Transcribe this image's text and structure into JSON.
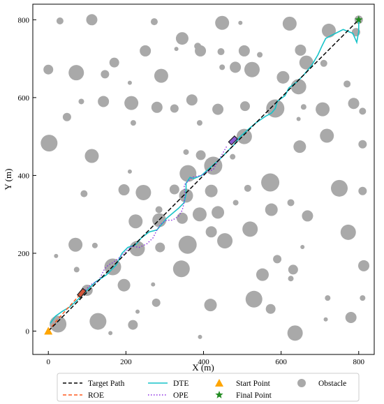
{
  "chart_data": {
    "type": "scatter",
    "xlabel": "X (m)",
    "ylabel": "Y (m)",
    "xlim": [
      -40,
      840
    ],
    "ylim": [
      -60,
      840
    ],
    "xticks": [
      0,
      200,
      400,
      600,
      800
    ],
    "yticks": [
      0,
      200,
      400,
      600,
      800
    ],
    "legend": {
      "placement": "bottom",
      "entries": [
        {
          "key": "target",
          "label": "Target Path"
        },
        {
          "key": "roe",
          "label": "ROE"
        },
        {
          "key": "dte",
          "label": "DTE"
        },
        {
          "key": "ope",
          "label": "OPE"
        },
        {
          "key": "start",
          "label": "Start Point"
        },
        {
          "key": "final",
          "label": "Final Point"
        },
        {
          "key": "obstacle",
          "label": "Obstacle"
        }
      ]
    },
    "colors": {
      "target": "#000000",
      "roe": "#ff5a1f",
      "dte": "#17c3c9",
      "ope": "#8a2be2",
      "start": "#ffa500",
      "final": "#228b22",
      "obstacle": "#a9a9a9",
      "vehicle_roe": "#d2553a",
      "vehicle_ope": "#8a5ad2"
    },
    "start_point": [
      0,
      0
    ],
    "final_point": [
      800,
      800
    ],
    "target_path": [
      [
        0,
        0
      ],
      [
        800,
        800
      ]
    ],
    "roe_path": [
      [
        0,
        0
      ],
      [
        20,
        25
      ],
      [
        40,
        48
      ],
      [
        60,
        70
      ],
      [
        80,
        92
      ],
      [
        86,
        98
      ]
    ],
    "dte_path": [
      [
        5,
        20
      ],
      [
        18,
        38
      ],
      [
        35,
        50
      ],
      [
        55,
        62
      ],
      [
        75,
        80
      ],
      [
        95,
        100
      ],
      [
        120,
        125
      ],
      [
        150,
        145
      ],
      [
        175,
        170
      ],
      [
        190,
        200
      ],
      [
        205,
        215
      ],
      [
        225,
        222
      ],
      [
        240,
        240
      ],
      [
        260,
        255
      ],
      [
        280,
        260
      ],
      [
        305,
        290
      ],
      [
        335,
        315
      ],
      [
        350,
        330
      ],
      [
        355,
        352
      ],
      [
        355,
        380
      ],
      [
        365,
        395
      ],
      [
        375,
        392
      ],
      [
        395,
        400
      ],
      [
        415,
        418
      ],
      [
        440,
        440
      ],
      [
        465,
        465
      ],
      [
        478,
        478
      ],
      [
        495,
        500
      ],
      [
        515,
        518
      ],
      [
        535,
        535
      ],
      [
        560,
        552
      ],
      [
        575,
        560
      ],
      [
        585,
        572
      ],
      [
        590,
        590
      ],
      [
        610,
        605
      ],
      [
        620,
        625
      ],
      [
        640,
        640
      ],
      [
        660,
        660
      ],
      [
        680,
        685
      ],
      [
        695,
        710
      ],
      [
        705,
        732
      ],
      [
        715,
        752
      ],
      [
        730,
        760
      ],
      [
        760,
        775
      ],
      [
        785,
        765
      ],
      [
        795,
        742
      ],
      [
        800,
        770
      ],
      [
        800,
        800
      ]
    ],
    "ope_path": [
      [
        85,
        95
      ],
      [
        95,
        105
      ],
      [
        110,
        120
      ],
      [
        130,
        130
      ],
      [
        145,
        160
      ],
      [
        155,
        170
      ],
      [
        165,
        175
      ],
      [
        185,
        190
      ],
      [
        200,
        205
      ],
      [
        215,
        218
      ],
      [
        235,
        215
      ],
      [
        255,
        225
      ],
      [
        270,
        240
      ],
      [
        280,
        260
      ],
      [
        290,
        275
      ],
      [
        305,
        285
      ],
      [
        320,
        285
      ],
      [
        335,
        295
      ],
      [
        345,
        310
      ],
      [
        350,
        330
      ],
      [
        352,
        350
      ],
      [
        350,
        375
      ],
      [
        370,
        395
      ],
      [
        395,
        400
      ],
      [
        410,
        410
      ],
      [
        425,
        415
      ],
      [
        430,
        425
      ],
      [
        440,
        440
      ],
      [
        460,
        475
      ]
    ],
    "vehicles": [
      {
        "key": "vehicle_roe",
        "x": 86,
        "y": 98,
        "angle": 50
      },
      {
        "key": "vehicle_ope",
        "x": 476,
        "y": 490,
        "angle": 45
      }
    ],
    "obstacles": [
      {
        "x": 30,
        "y": 797,
        "r": 5
      },
      {
        "x": 112,
        "y": 800,
        "r": 8
      },
      {
        "x": 273,
        "y": 795,
        "r": 5
      },
      {
        "x": 448,
        "y": 792,
        "r": 10
      },
      {
        "x": 495,
        "y": 792,
        "r": 3
      },
      {
        "x": 622,
        "y": 790,
        "r": 10
      },
      {
        "x": 723,
        "y": 772,
        "r": 10
      },
      {
        "x": 800,
        "y": 800,
        "r": 6
      },
      {
        "x": 345,
        "y": 752,
        "r": 9
      },
      {
        "x": 385,
        "y": 732,
        "r": 5
      },
      {
        "x": 250,
        "y": 720,
        "r": 8
      },
      {
        "x": 330,
        "y": 725,
        "r": 3
      },
      {
        "x": 392,
        "y": 720,
        "r": 8
      },
      {
        "x": 445,
        "y": 718,
        "r": 5
      },
      {
        "x": 505,
        "y": 720,
        "r": 8
      },
      {
        "x": 650,
        "y": 722,
        "r": 8
      },
      {
        "x": 793,
        "y": 768,
        "r": 6
      },
      {
        "x": 170,
        "y": 690,
        "r": 7
      },
      {
        "x": 482,
        "y": 678,
        "r": 8
      },
      {
        "x": 525,
        "y": 672,
        "r": 11
      },
      {
        "x": 665,
        "y": 690,
        "r": 10
      },
      {
        "x": 448,
        "y": 678,
        "r": 4
      },
      {
        "x": 545,
        "y": 710,
        "r": 4
      },
      {
        "x": 0,
        "y": 672,
        "r": 7
      },
      {
        "x": 72,
        "y": 664,
        "r": 11
      },
      {
        "x": 146,
        "y": 660,
        "r": 6
      },
      {
        "x": 291,
        "y": 656,
        "r": 10
      },
      {
        "x": 210,
        "y": 638,
        "r": 3
      },
      {
        "x": 605,
        "y": 652,
        "r": 9
      },
      {
        "x": 710,
        "y": 688,
        "r": 5
      },
      {
        "x": 645,
        "y": 628,
        "r": 11
      },
      {
        "x": 770,
        "y": 635,
        "r": 5
      },
      {
        "x": 85,
        "y": 590,
        "r": 4
      },
      {
        "x": 142,
        "y": 590,
        "r": 8
      },
      {
        "x": 214,
        "y": 586,
        "r": 10
      },
      {
        "x": 280,
        "y": 575,
        "r": 8
      },
      {
        "x": 325,
        "y": 572,
        "r": 6
      },
      {
        "x": 370,
        "y": 594,
        "r": 8
      },
      {
        "x": 437,
        "y": 570,
        "r": 8
      },
      {
        "x": 507,
        "y": 578,
        "r": 7
      },
      {
        "x": 585,
        "y": 572,
        "r": 13
      },
      {
        "x": 658,
        "y": 576,
        "r": 4
      },
      {
        "x": 707,
        "y": 570,
        "r": 10
      },
      {
        "x": 787,
        "y": 585,
        "r": 8
      },
      {
        "x": 810,
        "y": 565,
        "r": 5
      },
      {
        "x": 48,
        "y": 550,
        "r": 6
      },
      {
        "x": 219,
        "y": 535,
        "r": 4
      },
      {
        "x": 390,
        "y": 535,
        "r": 4
      },
      {
        "x": 645,
        "y": 545,
        "r": 3
      },
      {
        "x": 2,
        "y": 483,
        "r": 12
      },
      {
        "x": 505,
        "y": 500,
        "r": 11
      },
      {
        "x": 648,
        "y": 474,
        "r": 9
      },
      {
        "x": 718,
        "y": 502,
        "r": 10
      },
      {
        "x": 810,
        "y": 480,
        "r": 6
      },
      {
        "x": 112,
        "y": 450,
        "r": 10
      },
      {
        "x": 360,
        "y": 405,
        "r": 12
      },
      {
        "x": 393,
        "y": 452,
        "r": 7
      },
      {
        "x": 425,
        "y": 425,
        "r": 13
      },
      {
        "x": 475,
        "y": 448,
        "r": 4
      },
      {
        "x": 355,
        "y": 460,
        "r": 4
      },
      {
        "x": 210,
        "y": 410,
        "r": 3
      },
      {
        "x": 572,
        "y": 382,
        "r": 13
      },
      {
        "x": 750,
        "y": 367,
        "r": 12
      },
      {
        "x": 810,
        "y": 360,
        "r": 6
      },
      {
        "x": 195,
        "y": 363,
        "r": 8
      },
      {
        "x": 245,
        "y": 356,
        "r": 11
      },
      {
        "x": 325,
        "y": 364,
        "r": 7
      },
      {
        "x": 420,
        "y": 360,
        "r": 9
      },
      {
        "x": 514,
        "y": 367,
        "r": 5
      },
      {
        "x": 92,
        "y": 353,
        "r": 5
      },
      {
        "x": 355,
        "y": 348,
        "r": 10
      },
      {
        "x": 483,
        "y": 330,
        "r": 4
      },
      {
        "x": 575,
        "y": 312,
        "r": 9
      },
      {
        "x": 625,
        "y": 330,
        "r": 5
      },
      {
        "x": 285,
        "y": 312,
        "r": 5
      },
      {
        "x": 390,
        "y": 300,
        "r": 10
      },
      {
        "x": 437,
        "y": 305,
        "r": 9
      },
      {
        "x": 225,
        "y": 282,
        "r": 10
      },
      {
        "x": 286,
        "y": 285,
        "r": 10
      },
      {
        "x": 345,
        "y": 290,
        "r": 8
      },
      {
        "x": 520,
        "y": 262,
        "r": 11
      },
      {
        "x": 668,
        "y": 296,
        "r": 8
      },
      {
        "x": 773,
        "y": 254,
        "r": 11
      },
      {
        "x": 420,
        "y": 255,
        "r": 8
      },
      {
        "x": 70,
        "y": 222,
        "r": 10
      },
      {
        "x": 120,
        "y": 220,
        "r": 4
      },
      {
        "x": 229,
        "y": 212,
        "r": 11
      },
      {
        "x": 288,
        "y": 215,
        "r": 7
      },
      {
        "x": 359,
        "y": 222,
        "r": 13
      },
      {
        "x": 455,
        "y": 232,
        "r": 11
      },
      {
        "x": 655,
        "y": 216,
        "r": 3
      },
      {
        "x": 20,
        "y": 193,
        "r": 3
      },
      {
        "x": 73,
        "y": 158,
        "r": 4
      },
      {
        "x": 166,
        "y": 165,
        "r": 12
      },
      {
        "x": 343,
        "y": 160,
        "r": 12
      },
      {
        "x": 590,
        "y": 185,
        "r": 6
      },
      {
        "x": 631,
        "y": 158,
        "r": 7
      },
      {
        "x": 813,
        "y": 168,
        "r": 8
      },
      {
        "x": 195,
        "y": 118,
        "r": 9
      },
      {
        "x": 100,
        "y": 105,
        "r": 8
      },
      {
        "x": 270,
        "y": 120,
        "r": 3
      },
      {
        "x": 552,
        "y": 145,
        "r": 9
      },
      {
        "x": 625,
        "y": 135,
        "r": 4
      },
      {
        "x": 720,
        "y": 85,
        "r": 4
      },
      {
        "x": 810,
        "y": 85,
        "r": 4
      },
      {
        "x": 278,
        "y": 73,
        "r": 6
      },
      {
        "x": 418,
        "y": 67,
        "r": 9
      },
      {
        "x": 530,
        "y": 82,
        "r": 12
      },
      {
        "x": 573,
        "y": 57,
        "r": 7
      },
      {
        "x": 780,
        "y": 35,
        "r": 8
      },
      {
        "x": 715,
        "y": 30,
        "r": 3
      },
      {
        "x": 128,
        "y": 25,
        "r": 12
      },
      {
        "x": 218,
        "y": 16,
        "r": 7
      },
      {
        "x": 25,
        "y": 18,
        "r": 12
      },
      {
        "x": 160,
        "y": -5,
        "r": 3
      },
      {
        "x": 391,
        "y": -15,
        "r": 3
      },
      {
        "x": 636,
        "y": -5,
        "r": 11
      },
      {
        "x": 230,
        "y": 50,
        "r": 3
      }
    ]
  }
}
